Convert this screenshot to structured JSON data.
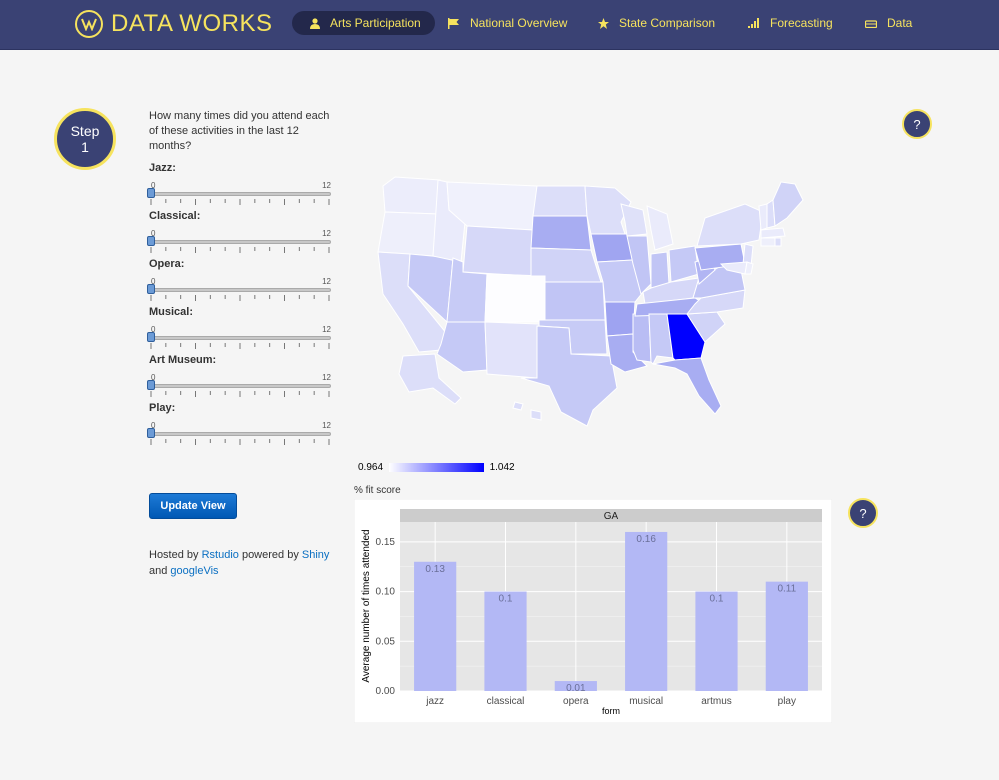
{
  "brand": {
    "name": "DATA WORKS",
    "accent": "#f6e35e",
    "navbar_bg": "#3a4274"
  },
  "nav": [
    {
      "label": "Arts Participation",
      "icon": "user-icon",
      "active": true
    },
    {
      "label": "National Overview",
      "icon": "flag-icon"
    },
    {
      "label": "State Comparison",
      "icon": "star-icon"
    },
    {
      "label": "Forecasting",
      "icon": "signal-icon"
    },
    {
      "label": "Data",
      "icon": "hdd-icon"
    }
  ],
  "step": {
    "label": "Step\n1"
  },
  "question": "How many times did you attend each of these activities in the last 12 months?",
  "sliders": [
    {
      "label": "Jazz:",
      "min": "0",
      "max": "12",
      "value": 0
    },
    {
      "label": "Classical:",
      "min": "0",
      "max": "12",
      "value": 0
    },
    {
      "label": "Opera:",
      "min": "0",
      "max": "12",
      "value": 0
    },
    {
      "label": "Musical:",
      "min": "0",
      "max": "12",
      "value": 0
    },
    {
      "label": "Art Museum:",
      "min": "0",
      "max": "12",
      "value": 0
    },
    {
      "label": "Play:",
      "min": "0",
      "max": "12",
      "value": 0
    }
  ],
  "update_button": "Update View",
  "hosted": {
    "t1": "Hosted by ",
    "l1": "Rstudio",
    "t2": " powered by ",
    "l2": "Shiny",
    "t3": " and ",
    "l3": "googleVis"
  },
  "help": {
    "symbol": "?"
  },
  "map": {
    "highlight_state": "GA",
    "legend_min": "0.964",
    "legend_max": "1.042",
    "legend_caption": "% fit score",
    "low_color": "#ffffff",
    "high_color": "#0000ff"
  },
  "chart_data": {
    "type": "bar",
    "title": "GA",
    "categories": [
      "jazz",
      "classical",
      "opera",
      "musical",
      "artmus",
      "play"
    ],
    "values": [
      0.13,
      0.1,
      0.01,
      0.16,
      0.1,
      0.11
    ],
    "labels": [
      "0.13",
      "0.1",
      "0.01",
      "0.16",
      "0.1",
      "0.11"
    ],
    "xlabel": "form",
    "ylabel": "Average number of times attended",
    "ylim": [
      0,
      0.17
    ],
    "yticks": [
      "0.00",
      "0.05",
      "0.10",
      "0.15"
    ],
    "ytick_values": [
      0,
      0.05,
      0.1,
      0.15
    ],
    "bar_color": "#b3b8f5",
    "grid": true
  }
}
